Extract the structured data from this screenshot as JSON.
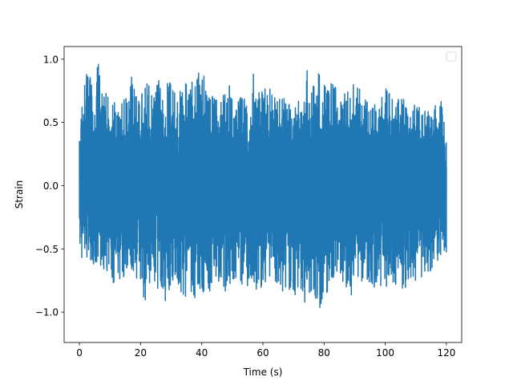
{
  "chart_data": {
    "type": "line",
    "xlabel": "Time (s)",
    "ylabel": "Strain",
    "xlim": [
      -5,
      125
    ],
    "ylim": [
      -1.24,
      1.1
    ],
    "xticks": [
      0,
      20,
      40,
      60,
      80,
      100,
      120
    ],
    "xtick_labels": [
      "0",
      "20",
      "40",
      "60",
      "80",
      "100",
      "120"
    ],
    "yticks": [
      -1.0,
      -0.5,
      0.0,
      0.5,
      1.0
    ],
    "ytick_labels": [
      "−1.0",
      "−0.5",
      "0.0",
      "0.5",
      "1.0"
    ],
    "legend": {
      "placement": "top-right",
      "entries": []
    },
    "grid": false,
    "series": [
      {
        "color": "#1f77b4",
        "x_range": [
          0,
          120
        ],
        "envelope_upper": [
          [
            0,
            0.48
          ],
          [
            1,
            0.65
          ],
          [
            2,
            0.92
          ],
          [
            3,
            0.99
          ],
          [
            5,
            0.6
          ],
          [
            6,
            0.99
          ],
          [
            8,
            0.75
          ],
          [
            10,
            0.7
          ],
          [
            12,
            0.65
          ],
          [
            14,
            0.82
          ],
          [
            16,
            0.65
          ],
          [
            17,
            0.89
          ],
          [
            19,
            0.75
          ],
          [
            20,
            0.7
          ],
          [
            22,
            0.84
          ],
          [
            24,
            0.7
          ],
          [
            26,
            0.84
          ],
          [
            28,
            0.8
          ],
          [
            30,
            0.84
          ],
          [
            32,
            0.72
          ],
          [
            34,
            0.8
          ],
          [
            36,
            0.84
          ],
          [
            38,
            0.8
          ],
          [
            40,
            0.99
          ],
          [
            42,
            0.75
          ],
          [
            44,
            0.7
          ],
          [
            46,
            0.7
          ],
          [
            48,
            0.8
          ],
          [
            50,
            0.8
          ],
          [
            52,
            0.7
          ],
          [
            54,
            0.7
          ],
          [
            56,
            0.65
          ],
          [
            57,
            0.92
          ],
          [
            58,
            0.7
          ],
          [
            60,
            0.8
          ],
          [
            62,
            0.85
          ],
          [
            64,
            0.7
          ],
          [
            66,
            0.7
          ],
          [
            68,
            0.7
          ],
          [
            70,
            0.6
          ],
          [
            72,
            0.7
          ],
          [
            74,
            1.0
          ],
          [
            76,
            0.75
          ],
          [
            78,
            0.99
          ],
          [
            80,
            0.8
          ],
          [
            82,
            0.8
          ],
          [
            84,
            0.84
          ],
          [
            86,
            0.7
          ],
          [
            88,
            0.8
          ],
          [
            90,
            0.84
          ],
          [
            92,
            0.75
          ],
          [
            94,
            0.7
          ],
          [
            96,
            0.7
          ],
          [
            98,
            0.65
          ],
          [
            100,
            0.84
          ],
          [
            102,
            0.75
          ],
          [
            104,
            0.7
          ],
          [
            106,
            0.78
          ],
          [
            108,
            0.6
          ],
          [
            110,
            0.65
          ],
          [
            112,
            0.6
          ],
          [
            114,
            0.6
          ],
          [
            116,
            0.65
          ],
          [
            118,
            0.72
          ],
          [
            119,
            0.55
          ],
          [
            120,
            0.4
          ]
        ],
        "envelope_lower": [
          [
            0,
            -0.45
          ],
          [
            1,
            -0.62
          ],
          [
            2,
            -0.55
          ],
          [
            4,
            -0.62
          ],
          [
            6,
            -0.62
          ],
          [
            8,
            -0.7
          ],
          [
            10,
            -0.75
          ],
          [
            12,
            -0.8
          ],
          [
            14,
            -0.75
          ],
          [
            16,
            -0.65
          ],
          [
            18,
            -0.8
          ],
          [
            20,
            -0.85
          ],
          [
            21,
            -0.9
          ],
          [
            22,
            -1.12
          ],
          [
            23,
            -0.75
          ],
          [
            24,
            -0.72
          ],
          [
            26,
            -0.85
          ],
          [
            28,
            -0.92
          ],
          [
            30,
            -0.8
          ],
          [
            32,
            -0.8
          ],
          [
            34,
            -0.95
          ],
          [
            36,
            -0.85
          ],
          [
            38,
            -0.9
          ],
          [
            40,
            -0.85
          ],
          [
            42,
            -0.85
          ],
          [
            44,
            -0.8
          ],
          [
            46,
            -0.75
          ],
          [
            48,
            -0.85
          ],
          [
            50,
            -0.75
          ],
          [
            52,
            -0.75
          ],
          [
            54,
            -0.8
          ],
          [
            56,
            -0.8
          ],
          [
            58,
            -0.85
          ],
          [
            60,
            -0.8
          ],
          [
            62,
            -0.72
          ],
          [
            64,
            -0.75
          ],
          [
            66,
            -0.85
          ],
          [
            68,
            -0.8
          ],
          [
            70,
            -0.9
          ],
          [
            72,
            -0.8
          ],
          [
            74,
            -0.95
          ],
          [
            76,
            -0.85
          ],
          [
            78,
            -0.92
          ],
          [
            79,
            -1.0
          ],
          [
            80,
            -0.9
          ],
          [
            82,
            -0.8
          ],
          [
            84,
            -0.7
          ],
          [
            86,
            -0.75
          ],
          [
            88,
            -0.85
          ],
          [
            90,
            -0.9
          ],
          [
            92,
            -0.8
          ],
          [
            94,
            -0.75
          ],
          [
            96,
            -0.8
          ],
          [
            98,
            -0.85
          ],
          [
            100,
            -0.85
          ],
          [
            102,
            -0.75
          ],
          [
            104,
            -0.8
          ],
          [
            106,
            -0.85
          ],
          [
            108,
            -0.75
          ],
          [
            110,
            -0.78
          ],
          [
            112,
            -0.72
          ],
          [
            114,
            -0.7
          ],
          [
            116,
            -0.65
          ],
          [
            118,
            -0.6
          ],
          [
            120,
            -0.55
          ]
        ]
      }
    ]
  }
}
